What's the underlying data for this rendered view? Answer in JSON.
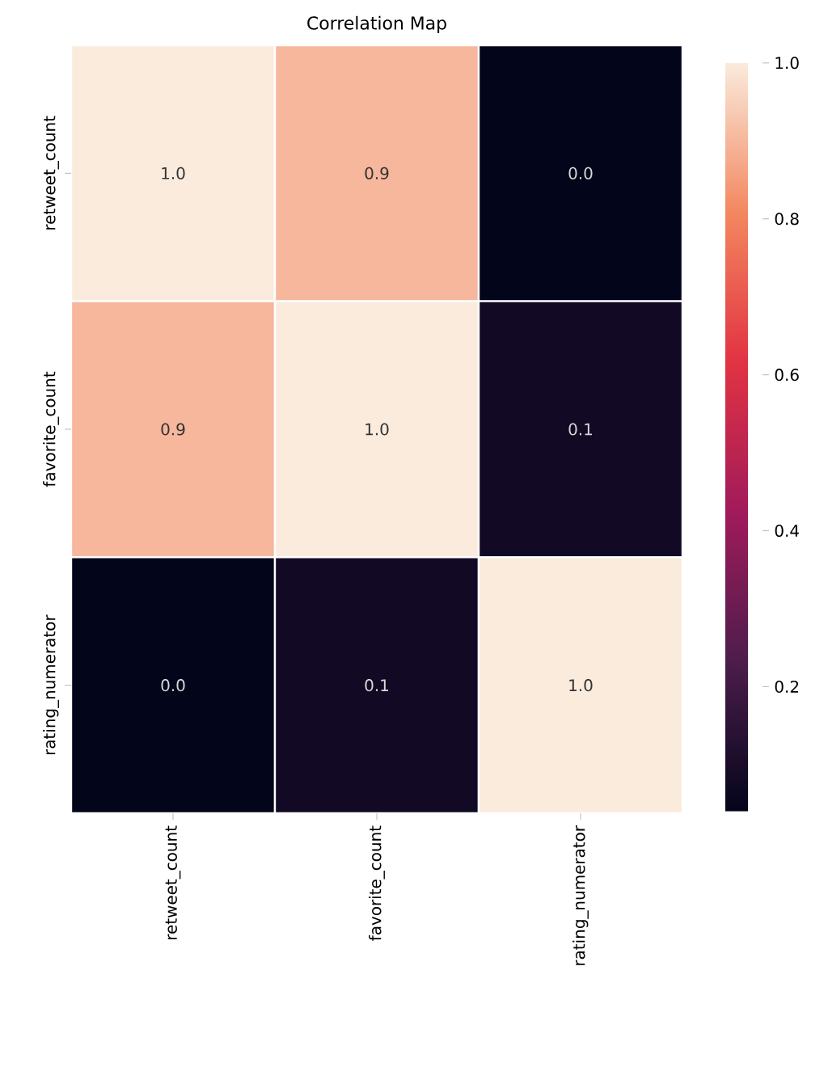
{
  "chart_data": {
    "type": "heatmap",
    "title": "Correlation Map",
    "categories": [
      "retweet_count",
      "favorite_count",
      "rating_numerator"
    ],
    "y_categories": [
      "retweet_count",
      "favorite_count",
      "rating_numerator"
    ],
    "cells": [
      [
        1.0,
        0.9,
        0.04
      ],
      [
        0.9,
        1.0,
        0.08
      ],
      [
        0.04,
        0.08,
        1.0
      ]
    ],
    "cell_labels": [
      [
        "1.0",
        "0.9",
        "0.0"
      ],
      [
        "0.9",
        "1.0",
        "0.1"
      ],
      [
        "0.0",
        "0.1",
        "1.0"
      ]
    ],
    "clim": [
      0.04,
      1.0
    ],
    "cticks": [
      0.2,
      0.4,
      0.6,
      0.8,
      {
        "value": 1.0,
        "label": "1.0"
      }
    ]
  }
}
